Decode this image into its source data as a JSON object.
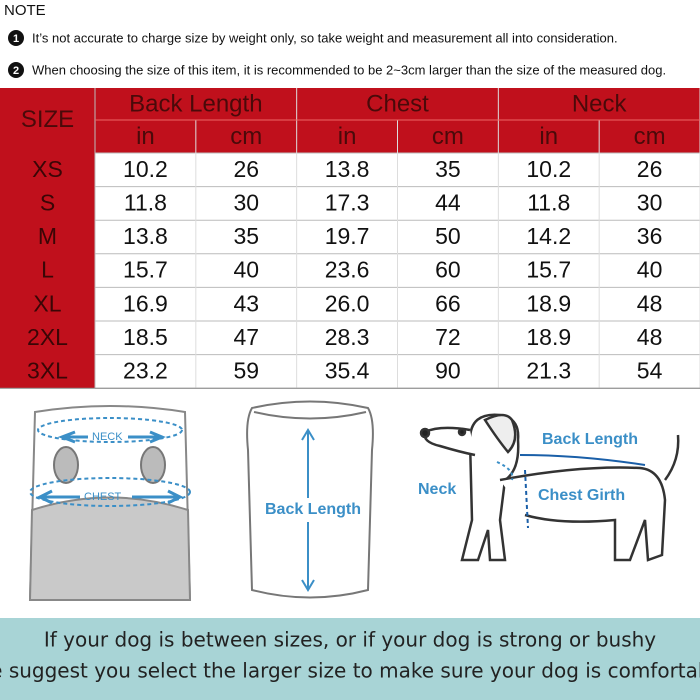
{
  "note": {
    "title": "NOTE",
    "items": [
      {
        "marker": "1",
        "text": "It’s not accurate to charge size by weight only, so take weight and measurement all into consideration."
      },
      {
        "marker": "2",
        "text": "When choosing the size of this item, it is recommended to be 2~3cm larger than the size of the measured dog."
      }
    ]
  },
  "table": {
    "header": [
      "SIZE",
      "Back Length",
      "Chest",
      "Neck"
    ],
    "units": [
      "in",
      "cm",
      "in",
      "cm",
      "in",
      "cm"
    ],
    "rows": [
      [
        "XS",
        "10.2",
        "26",
        "13.8",
        "35",
        "10.2",
        "26"
      ],
      [
        "S",
        "11.8",
        "30",
        "17.3",
        "44",
        "11.8",
        "30"
      ],
      [
        "M",
        "13.8",
        "35",
        "19.7",
        "50",
        "14.2",
        "36"
      ],
      [
        "L",
        "15.7",
        "40",
        "23.6",
        "60",
        "15.7",
        "40"
      ],
      [
        "XL",
        "16.9",
        "43",
        "26.0",
        "66",
        "18.9",
        "48"
      ],
      [
        "2XL",
        "18.5",
        "47",
        "28.3",
        "72",
        "18.9",
        "48"
      ],
      [
        "3XL",
        "23.2",
        "59",
        "35.4",
        "90",
        "21.3",
        "54"
      ]
    ]
  },
  "illustrations": {
    "neck": "NECK",
    "chest": "CHEST",
    "back_length": "Back Length",
    "dog_back_length": "Back Length",
    "dog_neck": "Neck",
    "dog_chest_girth": "Chest Girth"
  },
  "footer": [
    "If your dog is between sizes, or if your dog is strong or bushy",
    "We suggest you select the larger size to make sure  your dog is comfortable"
  ]
}
